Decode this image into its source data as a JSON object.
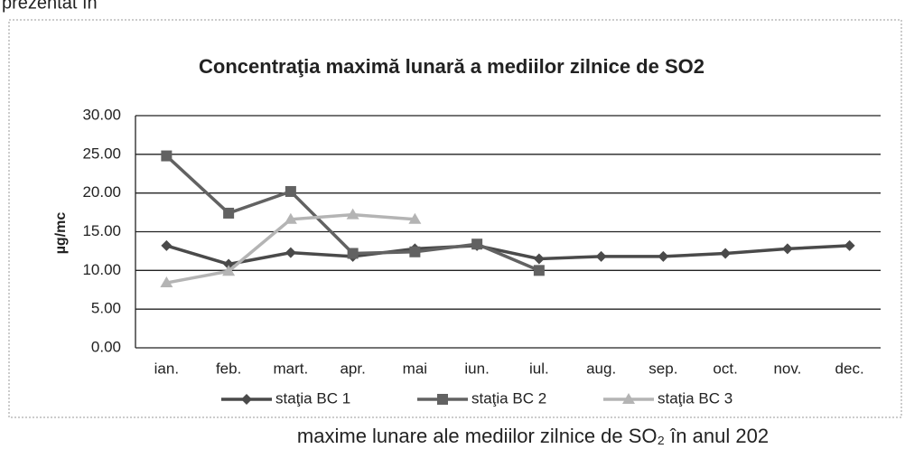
{
  "header_text": "prezentat în",
  "caption": "maxime lunare ale mediilor zilnice de SO₂ în anul 202",
  "chart_data": {
    "type": "line",
    "title": "Concentraţia maximă lunară a mediilor zilnice de SO2",
    "y_label": "µg/mc",
    "categories": [
      "ian.",
      "feb.",
      "mart.",
      "apr.",
      "mai",
      "iun.",
      "iul.",
      "aug.",
      "sep.",
      "oct.",
      "nov.",
      "dec."
    ],
    "series": [
      {
        "name": "staţia BC 1",
        "color": "#4a4a4a",
        "marker": "diamond",
        "values": [
          13.2,
          10.8,
          12.3,
          11.8,
          12.8,
          13.2,
          11.5,
          11.8,
          11.8,
          12.2,
          12.8,
          13.2
        ]
      },
      {
        "name": "staţia BC 2",
        "color": "#626262",
        "marker": "square",
        "values": [
          24.8,
          17.4,
          20.2,
          12.2,
          12.4,
          13.4,
          10.0,
          null,
          null,
          null,
          null,
          null
        ]
      },
      {
        "name": "staţia BC 3",
        "color": "#b4b4b4",
        "marker": "triangle",
        "values": [
          8.4,
          9.9,
          16.6,
          17.2,
          16.6,
          null,
          null,
          null,
          null,
          null,
          null,
          null
        ]
      }
    ],
    "ylim": [
      0,
      30
    ],
    "yticks": [
      {
        "value": 0,
        "label": "0.00"
      },
      {
        "value": 5,
        "label": "5.00"
      },
      {
        "value": 10,
        "label": "10.00"
      },
      {
        "value": 15,
        "label": "15.00"
      },
      {
        "value": 20,
        "label": "20.00"
      },
      {
        "value": 25,
        "label": "25.00"
      },
      {
        "value": 30,
        "label": "30.00"
      }
    ],
    "grid": true,
    "legend": "bottom"
  }
}
